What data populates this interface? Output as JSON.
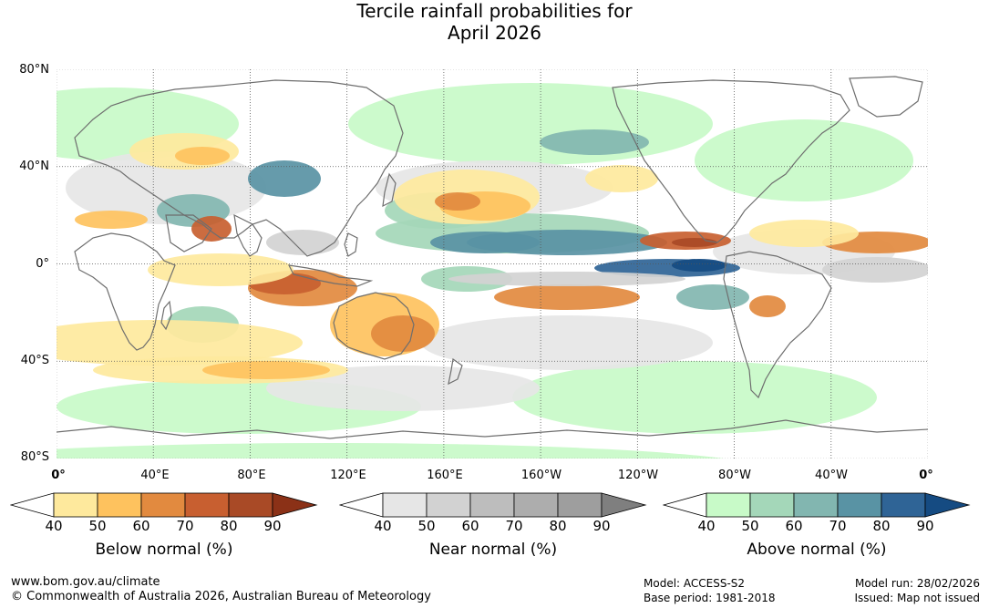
{
  "title": {
    "line1": "Tercile rainfall probabilities for",
    "line2": "April 2026"
  },
  "map": {
    "lat_labels": [
      "80°N",
      "40°N",
      "0°",
      "40°S",
      "80°S"
    ],
    "lon_labels": [
      "0°",
      "40°E",
      "80°E",
      "120°E",
      "160°E",
      "160°W",
      "120°W",
      "80°W",
      "40°W",
      "0°"
    ]
  },
  "legends": [
    {
      "id": "below",
      "title": "Below normal (%)",
      "ticks": [
        "40",
        "50",
        "60",
        "70",
        "80",
        "90"
      ],
      "colors": [
        "#ffffff",
        "#fee99d",
        "#fec25e",
        "#e28a3f",
        "#c85f30",
        "#a94a26",
        "#8b3117"
      ]
    },
    {
      "id": "near",
      "title": "Near normal (%)",
      "ticks": [
        "40",
        "50",
        "60",
        "70",
        "80",
        "90"
      ],
      "colors": [
        "#ffffff",
        "#e6e6e6",
        "#d2d2d2",
        "#bdbdbd",
        "#adadad",
        "#9e9e9e",
        "#7f7f7f"
      ]
    },
    {
      "id": "above",
      "title": "Above normal (%)",
      "ticks": [
        "40",
        "50",
        "60",
        "70",
        "80",
        "90"
      ],
      "colors": [
        "#ffffff",
        "#c8fac8",
        "#a4d7b9",
        "#82b6b0",
        "#5993a4",
        "#2f6496",
        "#154b82"
      ]
    }
  ],
  "footer": {
    "url": "www.bom.gov.au/climate",
    "copyright": "© Commonwealth of Australia 2026, Australian Bureau of Meteorology",
    "model": "Model: ACCESS-S2",
    "base_period": "Base period: 1981-2018",
    "model_run": "Model run: 28/02/2026",
    "issued": "Issued: Map not issued"
  }
}
